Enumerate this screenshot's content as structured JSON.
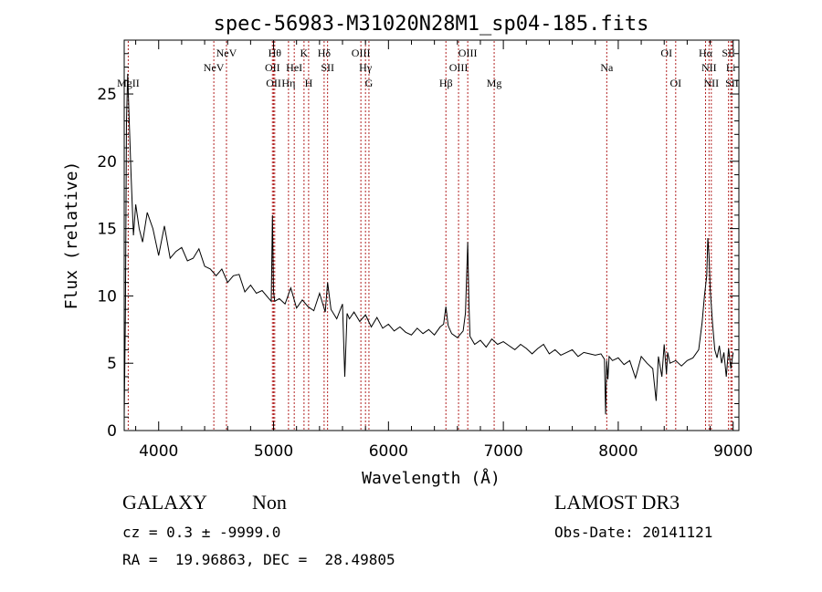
{
  "chart_data": {
    "type": "line",
    "title": "spec-56983-M31020N28M1_sp04-185.fits",
    "xlabel": "Wavelength (Å)",
    "ylabel": "Flux (relative)",
    "xlim": [
      3700,
      9050
    ],
    "ylim": [
      0,
      29
    ],
    "x_ticks": [
      4000,
      5000,
      6000,
      7000,
      8000,
      9000
    ],
    "y_ticks": [
      0,
      5,
      10,
      15,
      20,
      25
    ],
    "grid": false,
    "line_color": "#000000",
    "marker_color": "#b22222",
    "lines": [
      {
        "label": "MgII",
        "x": 3735,
        "row": 3
      },
      {
        "label": "NeV",
        "x": 4480,
        "row": 2
      },
      {
        "label": "NeV",
        "x": 4590,
        "row": 1
      },
      {
        "label": "OII",
        "x": 4990,
        "row": 2
      },
      {
        "label": "OII",
        "x": 5000,
        "row": 3
      },
      {
        "label": "Hθ",
        "x": 5010,
        "row": 1
      },
      {
        "label": "Hη",
        "x": 5130,
        "row": 3
      },
      {
        "label": "HeI",
        "x": 5180,
        "row": 2
      },
      {
        "label": "K",
        "x": 5265,
        "row": 1
      },
      {
        "label": "H",
        "x": 5305,
        "row": 3
      },
      {
        "label": "Hδ",
        "x": 5440,
        "row": 1
      },
      {
        "label": "SII",
        "x": 5470,
        "row": 2
      },
      {
        "label": "OIII",
        "x": 5760,
        "row": 1
      },
      {
        "label": "Hγ",
        "x": 5800,
        "row": 2
      },
      {
        "label": "G",
        "x": 5830,
        "row": 3
      },
      {
        "label": "Hβ",
        "x": 6500,
        "row": 3
      },
      {
        "label": "OIII",
        "x": 6610,
        "row": 2
      },
      {
        "label": "OIII",
        "x": 6690,
        "row": 1
      },
      {
        "label": "Mg",
        "x": 6920,
        "row": 3
      },
      {
        "label": "Na",
        "x": 7900,
        "row": 2
      },
      {
        "label": "OI",
        "x": 8420,
        "row": 1
      },
      {
        "label": "OI",
        "x": 8500,
        "row": 3
      },
      {
        "label": "Hα",
        "x": 8760,
        "row": 1
      },
      {
        "label": "NII",
        "x": 8790,
        "row": 2
      },
      {
        "label": "NII",
        "x": 8810,
        "row": 3
      },
      {
        "label": "SII",
        "x": 8960,
        "row": 1
      },
      {
        "label": "Li",
        "x": 8980,
        "row": 2
      },
      {
        "label": "SII",
        "x": 8990,
        "row": 3
      }
    ],
    "series": [
      {
        "x": [
          3700,
          3710,
          3720,
          3730,
          3740,
          3760,
          3780,
          3800,
          3830,
          3860,
          3900,
          3950,
          4000,
          4050,
          4100,
          4150,
          4200,
          4250,
          4300,
          4350,
          4400,
          4450,
          4500,
          4550,
          4600,
          4650,
          4700,
          4750,
          4800,
          4850,
          4900,
          4950,
          4980,
          4990,
          5000,
          5010,
          5050,
          5100,
          5150,
          5200,
          5250,
          5300,
          5350,
          5400,
          5450,
          5470,
          5500,
          5550,
          5600,
          5620,
          5640,
          5660,
          5700,
          5750,
          5800,
          5850,
          5900,
          5950,
          6000,
          6050,
          6100,
          6150,
          6200,
          6250,
          6300,
          6350,
          6400,
          6450,
          6480,
          6500,
          6520,
          6550,
          6600,
          6650,
          6670,
          6690,
          6700,
          6710,
          6750,
          6800,
          6850,
          6900,
          6950,
          7000,
          7050,
          7100,
          7150,
          7200,
          7250,
          7300,
          7350,
          7400,
          7450,
          7500,
          7550,
          7600,
          7650,
          7700,
          7750,
          7800,
          7850,
          7880,
          7890,
          7900,
          7910,
          7920,
          7950,
          8000,
          8050,
          8100,
          8150,
          8200,
          8250,
          8300,
          8330,
          8350,
          8380,
          8400,
          8420,
          8430,
          8450,
          8500,
          8550,
          8600,
          8650,
          8700,
          8730,
          8750,
          8770,
          8780,
          8790,
          8800,
          8820,
          8840,
          8860,
          8880,
          8900,
          8920,
          8940,
          8960,
          8980,
          9000
        ],
        "y": [
          1.0,
          8.5,
          23.0,
          26.5,
          24.0,
          19.0,
          14.5,
          16.8,
          15.0,
          14.0,
          16.2,
          15.0,
          13.0,
          15.2,
          12.8,
          13.3,
          13.6,
          12.6,
          12.8,
          13.5,
          12.2,
          12.0,
          11.5,
          12.0,
          11.0,
          11.5,
          11.6,
          10.3,
          10.8,
          10.2,
          10.4,
          9.9,
          9.6,
          16.0,
          10.3,
          9.6,
          9.8,
          9.4,
          10.6,
          9.1,
          9.7,
          9.2,
          8.9,
          10.2,
          8.8,
          11.0,
          9.0,
          8.3,
          9.4,
          4.0,
          8.7,
          8.3,
          8.8,
          8.1,
          8.6,
          7.7,
          8.4,
          7.6,
          7.9,
          7.4,
          7.7,
          7.3,
          7.1,
          7.6,
          7.2,
          7.5,
          7.1,
          7.7,
          7.9,
          9.2,
          7.8,
          7.2,
          6.9,
          7.4,
          8.7,
          14.0,
          9.5,
          7.0,
          6.4,
          6.7,
          6.2,
          6.8,
          6.4,
          6.6,
          6.3,
          6.0,
          6.4,
          6.1,
          5.7,
          6.1,
          6.4,
          5.7,
          6.0,
          5.6,
          5.8,
          6.0,
          5.5,
          5.8,
          5.7,
          5.6,
          5.7,
          5.3,
          1.2,
          5.2,
          3.8,
          5.5,
          5.2,
          5.4,
          4.9,
          5.2,
          3.9,
          5.5,
          5.0,
          4.6,
          2.2,
          5.5,
          4.0,
          6.4,
          4.2,
          5.8,
          5.0,
          5.2,
          4.8,
          5.2,
          5.4,
          6.0,
          8.0,
          10.0,
          11.5,
          14.3,
          13.0,
          10.5,
          8.0,
          6.0,
          5.4,
          6.3,
          5.0,
          5.8,
          4.0,
          6.1,
          4.6,
          5.8
        ]
      }
    ]
  },
  "info": {
    "object_class": "GALAXY",
    "subclass": "Non",
    "cz": "cz = 0.3 ± -9999.0",
    "radec": "RA =  19.96863, DEC =  28.49805",
    "survey": "LAMOST DR3",
    "obs_date": "Obs-Date: 20141121"
  }
}
